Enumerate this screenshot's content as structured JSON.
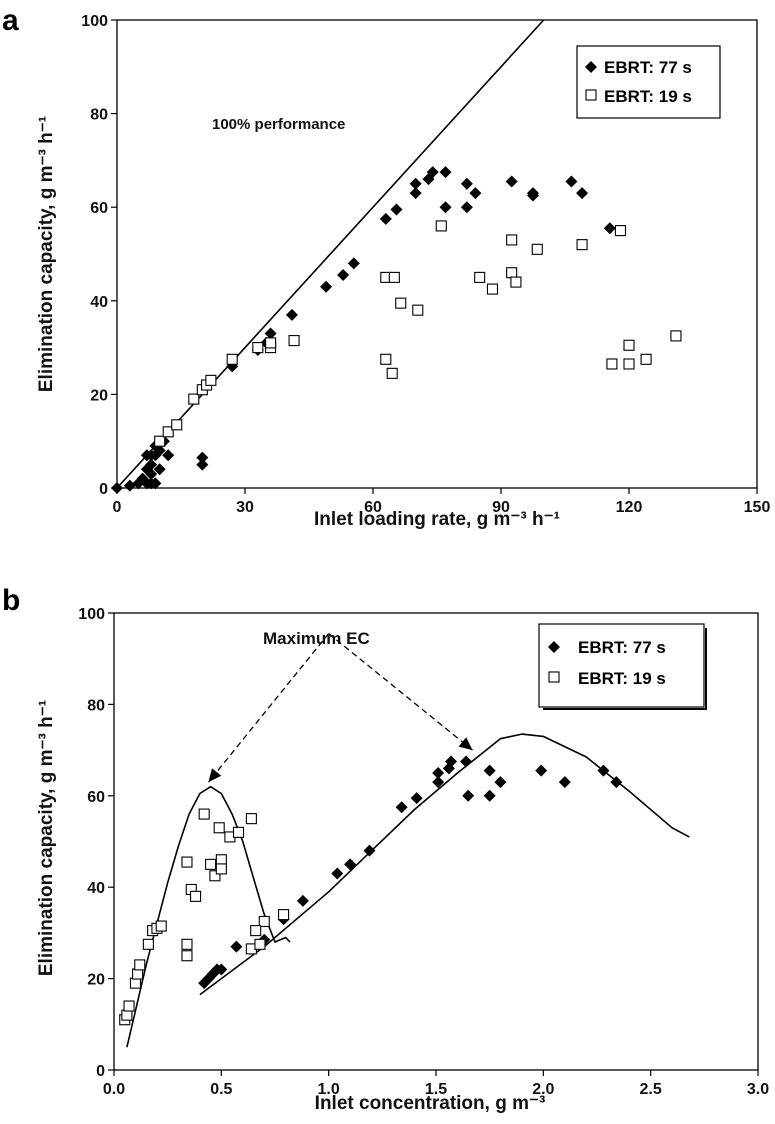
{
  "chart_data": [
    {
      "id": "a",
      "panel_label": "a",
      "type": "scatter",
      "xlabel": "Inlet loading rate, g m⁻³ h⁻¹",
      "ylabel": "Elimination capacity, g m⁻³ h⁻¹",
      "xlim": [
        0,
        150
      ],
      "ylim": [
        0,
        100
      ],
      "xticks": [
        "0",
        "30",
        "60",
        "90",
        "120",
        "150"
      ],
      "yticks": [
        "0",
        "20",
        "40",
        "60",
        "80",
        "100"
      ],
      "legend": {
        "position": "top-right",
        "entries": [
          "EBRT: 77 s",
          "EBRT: 19 s"
        ]
      },
      "annotation": "100% performance",
      "reference_line": {
        "x": [
          0,
          100
        ],
        "y": [
          0,
          100
        ]
      },
      "series": [
        {
          "name": "EBRT: 77 s",
          "marker": "filled-diamond",
          "points": [
            [
              0,
              0
            ],
            [
              3,
              0.5
            ],
            [
              5,
              1
            ],
            [
              6,
              2
            ],
            [
              7,
              1
            ],
            [
              8,
              1
            ],
            [
              8,
              3
            ],
            [
              9,
              1
            ],
            [
              7,
              4
            ],
            [
              8,
              5
            ],
            [
              7,
              7
            ],
            [
              8,
              7
            ],
            [
              9,
              7
            ],
            [
              9,
              9
            ],
            [
              10,
              4
            ],
            [
              10,
              8
            ],
            [
              11,
              10
            ],
            [
              12,
              7
            ],
            [
              20,
              5
            ],
            [
              20,
              6.5
            ],
            [
              27,
              26
            ],
            [
              33,
              29.5
            ],
            [
              35,
              31
            ],
            [
              36,
              33
            ],
            [
              41,
              37
            ],
            [
              49,
              43
            ],
            [
              53,
              45.5
            ],
            [
              55.5,
              48
            ],
            [
              63,
              57.5
            ],
            [
              65.5,
              59.5
            ],
            [
              70,
              65
            ],
            [
              70,
              63
            ],
            [
              73,
              66
            ],
            [
              74,
              67.5
            ],
            [
              77,
              67.5
            ],
            [
              77,
              60
            ],
            [
              82,
              65
            ],
            [
              82,
              60
            ],
            [
              84,
              63
            ],
            [
              92.5,
              65.5
            ],
            [
              97.5,
              63
            ],
            [
              97.5,
              62.5
            ],
            [
              106.5,
              65.5
            ],
            [
              109,
              63
            ],
            [
              115.5,
              55.5
            ]
          ]
        },
        {
          "name": "EBRT: 19 s",
          "marker": "open-square",
          "points": [
            [
              10,
              10
            ],
            [
              12,
              12
            ],
            [
              14,
              13.5
            ],
            [
              18,
              19
            ],
            [
              20,
              21
            ],
            [
              21,
              22
            ],
            [
              22,
              23
            ],
            [
              27,
              27.5
            ],
            [
              33,
              30
            ],
            [
              36,
              30
            ],
            [
              36,
              31
            ],
            [
              41.5,
              31.5
            ],
            [
              63,
              45
            ],
            [
              65,
              45
            ],
            [
              63,
              27.5
            ],
            [
              64.5,
              24.5
            ],
            [
              66.5,
              39.5
            ],
            [
              70.5,
              38
            ],
            [
              76,
              56
            ],
            [
              85,
              45
            ],
            [
              88,
              42.5
            ],
            [
              92.5,
              53
            ],
            [
              92.5,
              46
            ],
            [
              93.5,
              44
            ],
            [
              98.5,
              51
            ],
            [
              109,
              52
            ],
            [
              118,
              55
            ],
            [
              116,
              26.5
            ],
            [
              120,
              26.5
            ],
            [
              120,
              30.5
            ],
            [
              124,
              27.5
            ],
            [
              131,
              32.5
            ]
          ]
        }
      ]
    },
    {
      "id": "b",
      "panel_label": "b",
      "type": "scatter",
      "xlabel": "Inlet concentration, g m⁻³",
      "ylabel": "Elimination capacity, g m⁻³  h⁻¹",
      "xlim": [
        0,
        3
      ],
      "ylim": [
        0,
        100
      ],
      "xticks": [
        "0.0",
        "0.5",
        "1.0",
        "1.5",
        "2.0",
        "2.5",
        "3.0"
      ],
      "yticks": [
        "0",
        "20",
        "40",
        "60",
        "80",
        "100"
      ],
      "legend": {
        "position": "top-right",
        "entries": [
          "EBRT: 77 s",
          "EBRT: 19 s"
        ]
      },
      "annotation": "Maximum EC",
      "arrow_origin": [
        1.0,
        95.5
      ],
      "arrow_targets": [
        [
          0.44,
          63
        ],
        [
          1.67,
          70
        ]
      ],
      "fit_curves": [
        {
          "x": [
            0.06,
            0.1,
            0.15,
            0.2,
            0.25,
            0.3,
            0.35,
            0.4,
            0.45,
            0.5,
            0.55,
            0.6,
            0.65,
            0.7,
            0.75,
            0.8,
            0.82
          ],
          "y": [
            5,
            13,
            23,
            32,
            41,
            49,
            56,
            60.5,
            62,
            60.5,
            56,
            50,
            42,
            34,
            28,
            29,
            28
          ]
        },
        {
          "x": [
            0.4,
            0.5,
            0.6,
            0.7,
            0.8,
            1.0,
            1.2,
            1.4,
            1.6,
            1.8,
            1.9,
            2.0,
            2.2,
            2.4,
            2.6,
            2.68
          ],
          "y": [
            16.5,
            20,
            23.5,
            27,
            31,
            39,
            48,
            57,
            65,
            72.5,
            73.5,
            73,
            68.5,
            61,
            53,
            51
          ]
        }
      ],
      "series": [
        {
          "name": "EBRT: 77 s",
          "marker": "filled-diamond",
          "points": [
            [
              0.42,
              19
            ],
            [
              0.44,
              20
            ],
            [
              0.46,
              21
            ],
            [
              0.48,
              22
            ],
            [
              0.5,
              22
            ],
            [
              0.57,
              27
            ],
            [
              0.7,
              28.5
            ],
            [
              0.79,
              33
            ],
            [
              0.88,
              37
            ],
            [
              1.04,
              43
            ],
            [
              1.1,
              45
            ],
            [
              1.19,
              48
            ],
            [
              1.34,
              57.5
            ],
            [
              1.41,
              59.5
            ],
            [
              1.51,
              65
            ],
            [
              1.51,
              63
            ],
            [
              1.56,
              66
            ],
            [
              1.57,
              67.5
            ],
            [
              1.64,
              67.5
            ],
            [
              1.65,
              60
            ],
            [
              1.75,
              65.5
            ],
            [
              1.75,
              60
            ],
            [
              1.8,
              63
            ],
            [
              1.99,
              65.5
            ],
            [
              2.1,
              63
            ],
            [
              2.28,
              65.5
            ],
            [
              2.34,
              63
            ]
          ]
        },
        {
          "name": "EBRT: 19 s",
          "marker": "open-square",
          "points": [
            [
              0.05,
              11
            ],
            [
              0.06,
              12
            ],
            [
              0.07,
              14
            ],
            [
              0.1,
              19
            ],
            [
              0.11,
              21
            ],
            [
              0.12,
              23
            ],
            [
              0.16,
              27.5
            ],
            [
              0.18,
              30.5
            ],
            [
              0.2,
              31
            ],
            [
              0.22,
              31.5
            ],
            [
              0.34,
              45.5
            ],
            [
              0.36,
              39.5
            ],
            [
              0.38,
              38
            ],
            [
              0.34,
              27.5
            ],
            [
              0.34,
              25
            ],
            [
              0.42,
              56
            ],
            [
              0.45,
              45
            ],
            [
              0.47,
              42.5
            ],
            [
              0.49,
              53
            ],
            [
              0.5,
              46
            ],
            [
              0.5,
              44
            ],
            [
              0.54,
              51
            ],
            [
              0.58,
              52
            ],
            [
              0.64,
              55
            ],
            [
              0.64,
              26.5
            ],
            [
              0.68,
              27.5
            ],
            [
              0.7,
              32.5
            ],
            [
              0.66,
              30.5
            ],
            [
              0.79,
              34
            ]
          ]
        }
      ]
    }
  ]
}
